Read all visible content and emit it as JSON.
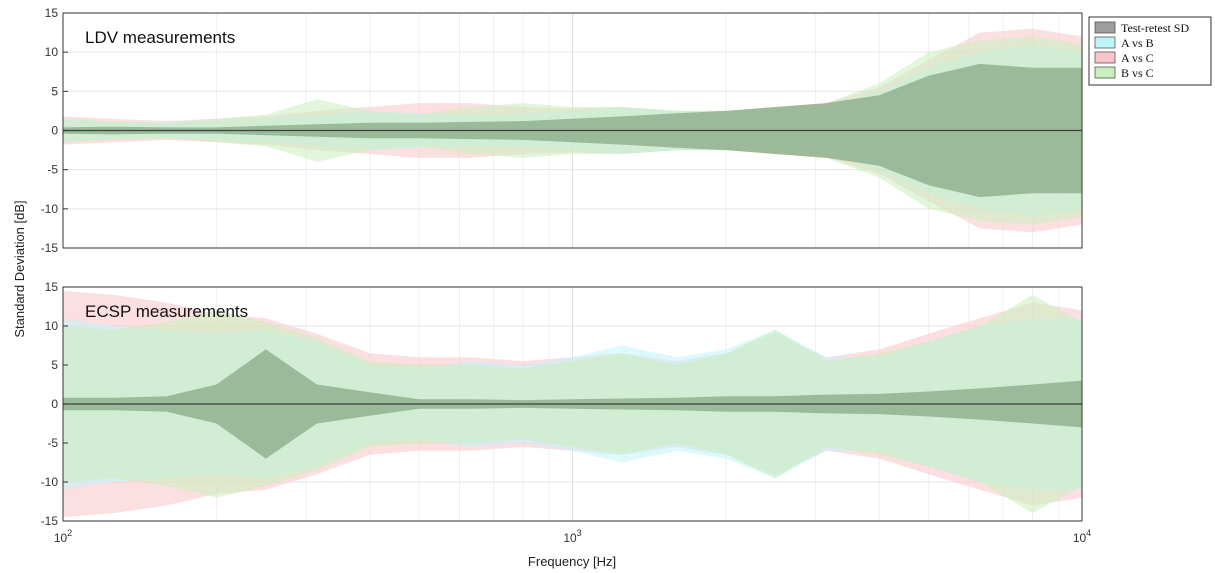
{
  "chart_data": {
    "type": "area",
    "xlabel": "Frequency [Hz]",
    "ylabel": "Standard Deviation [dB]",
    "xscale": "log",
    "xlim": [
      100,
      10000
    ],
    "ylim": [
      -15,
      15
    ],
    "grid": true,
    "x_tick_labels": [
      {
        "value": 100,
        "base": "10",
        "exp": "2"
      },
      {
        "value": 1000,
        "base": "10",
        "exp": "3"
      },
      {
        "value": 10000,
        "base": "10",
        "exp": "4"
      }
    ],
    "y_ticks": [
      -15,
      -10,
      -5,
      0,
      5,
      10,
      15
    ],
    "legend": {
      "position": "outside-top-right",
      "entries": [
        {
          "name": "Test-retest SD",
          "color": "#9e9e9e"
        },
        {
          "name": "A vs B",
          "color": "#bff4fb"
        },
        {
          "name": "A vs C",
          "color": "#f9c4c8"
        },
        {
          "name": "B vs C",
          "color": "#c9efbd"
        }
      ]
    },
    "x": [
      100,
      125,
      160,
      200,
      250,
      315,
      400,
      500,
      630,
      800,
      1000,
      1250,
      1600,
      2000,
      2500,
      3150,
      4000,
      5000,
      6300,
      8000,
      10000
    ],
    "panels": [
      {
        "title": "LDV measurements",
        "series": [
          {
            "name": "Test-retest SD",
            "color": "#9e9e9e",
            "values": [
              0.4,
              0.5,
              0.4,
              0.4,
              0.6,
              0.8,
              1.0,
              1.0,
              1.1,
              1.2,
              1.5,
              1.8,
              2.2,
              2.5,
              3.0,
              3.5,
              4.5,
              7.0,
              8.5,
              8.0,
              8.0
            ]
          },
          {
            "name": "A vs B",
            "color": "#bff4fb",
            "values": [
              1.5,
              1.0,
              1.0,
              1.2,
              1.5,
              2.0,
              2.5,
              2.2,
              2.0,
              2.2,
              2.5,
              3.0,
              2.5,
              2.5,
              2.8,
              3.0,
              5.0,
              8.0,
              10.0,
              11.0,
              10.0
            ]
          },
          {
            "name": "A vs C",
            "color": "#f9c4c8",
            "values": [
              1.8,
              1.5,
              1.2,
              1.5,
              1.8,
              2.5,
              3.0,
              3.5,
              3.5,
              3.0,
              2.8,
              3.0,
              2.5,
              2.5,
              3.0,
              3.5,
              5.5,
              9.0,
              12.5,
              13.0,
              12.0
            ]
          },
          {
            "name": "B vs C",
            "color": "#c9efbd",
            "values": [
              1.5,
              1.2,
              1.0,
              1.5,
              2.0,
              4.0,
              2.5,
              2.0,
              3.0,
              3.5,
              3.0,
              3.0,
              2.5,
              2.5,
              3.0,
              3.5,
              6.0,
              10.0,
              11.5,
              12.0,
              11.0
            ]
          }
        ]
      },
      {
        "title": "ECSP measurements",
        "series": [
          {
            "name": "Test-retest SD",
            "color": "#9e9e9e",
            "values": [
              0.8,
              0.8,
              1.0,
              2.5,
              7.0,
              2.5,
              1.5,
              0.6,
              0.6,
              0.5,
              0.6,
              0.7,
              0.8,
              1.0,
              1.0,
              1.2,
              1.3,
              1.6,
              2.0,
              2.5,
              3.0
            ]
          },
          {
            "name": "A vs B",
            "color": "#bff4fb",
            "values": [
              11.0,
              10.0,
              9.5,
              9.0,
              9.5,
              8.0,
              5.0,
              4.5,
              5.5,
              5.0,
              6.0,
              7.5,
              6.0,
              7.0,
              9.5,
              6.0,
              6.0,
              8.0,
              10.0,
              11.0,
              11.0
            ]
          },
          {
            "name": "A vs C",
            "color": "#f9c4c8",
            "values": [
              14.5,
              14.0,
              13.0,
              11.5,
              11.0,
              9.0,
              6.5,
              6.0,
              6.0,
              5.5,
              6.0,
              6.5,
              5.5,
              6.5,
              9.0,
              6.0,
              7.0,
              9.0,
              11.0,
              13.0,
              12.0
            ]
          },
          {
            "name": "B vs C",
            "color": "#c9efbd",
            "values": [
              10.0,
              9.5,
              10.5,
              12.0,
              10.5,
              8.5,
              5.5,
              5.0,
              5.0,
              4.5,
              5.5,
              6.5,
              5.0,
              6.5,
              9.5,
              5.5,
              6.5,
              8.0,
              10.0,
              14.0,
              10.5
            ]
          }
        ]
      }
    ]
  }
}
